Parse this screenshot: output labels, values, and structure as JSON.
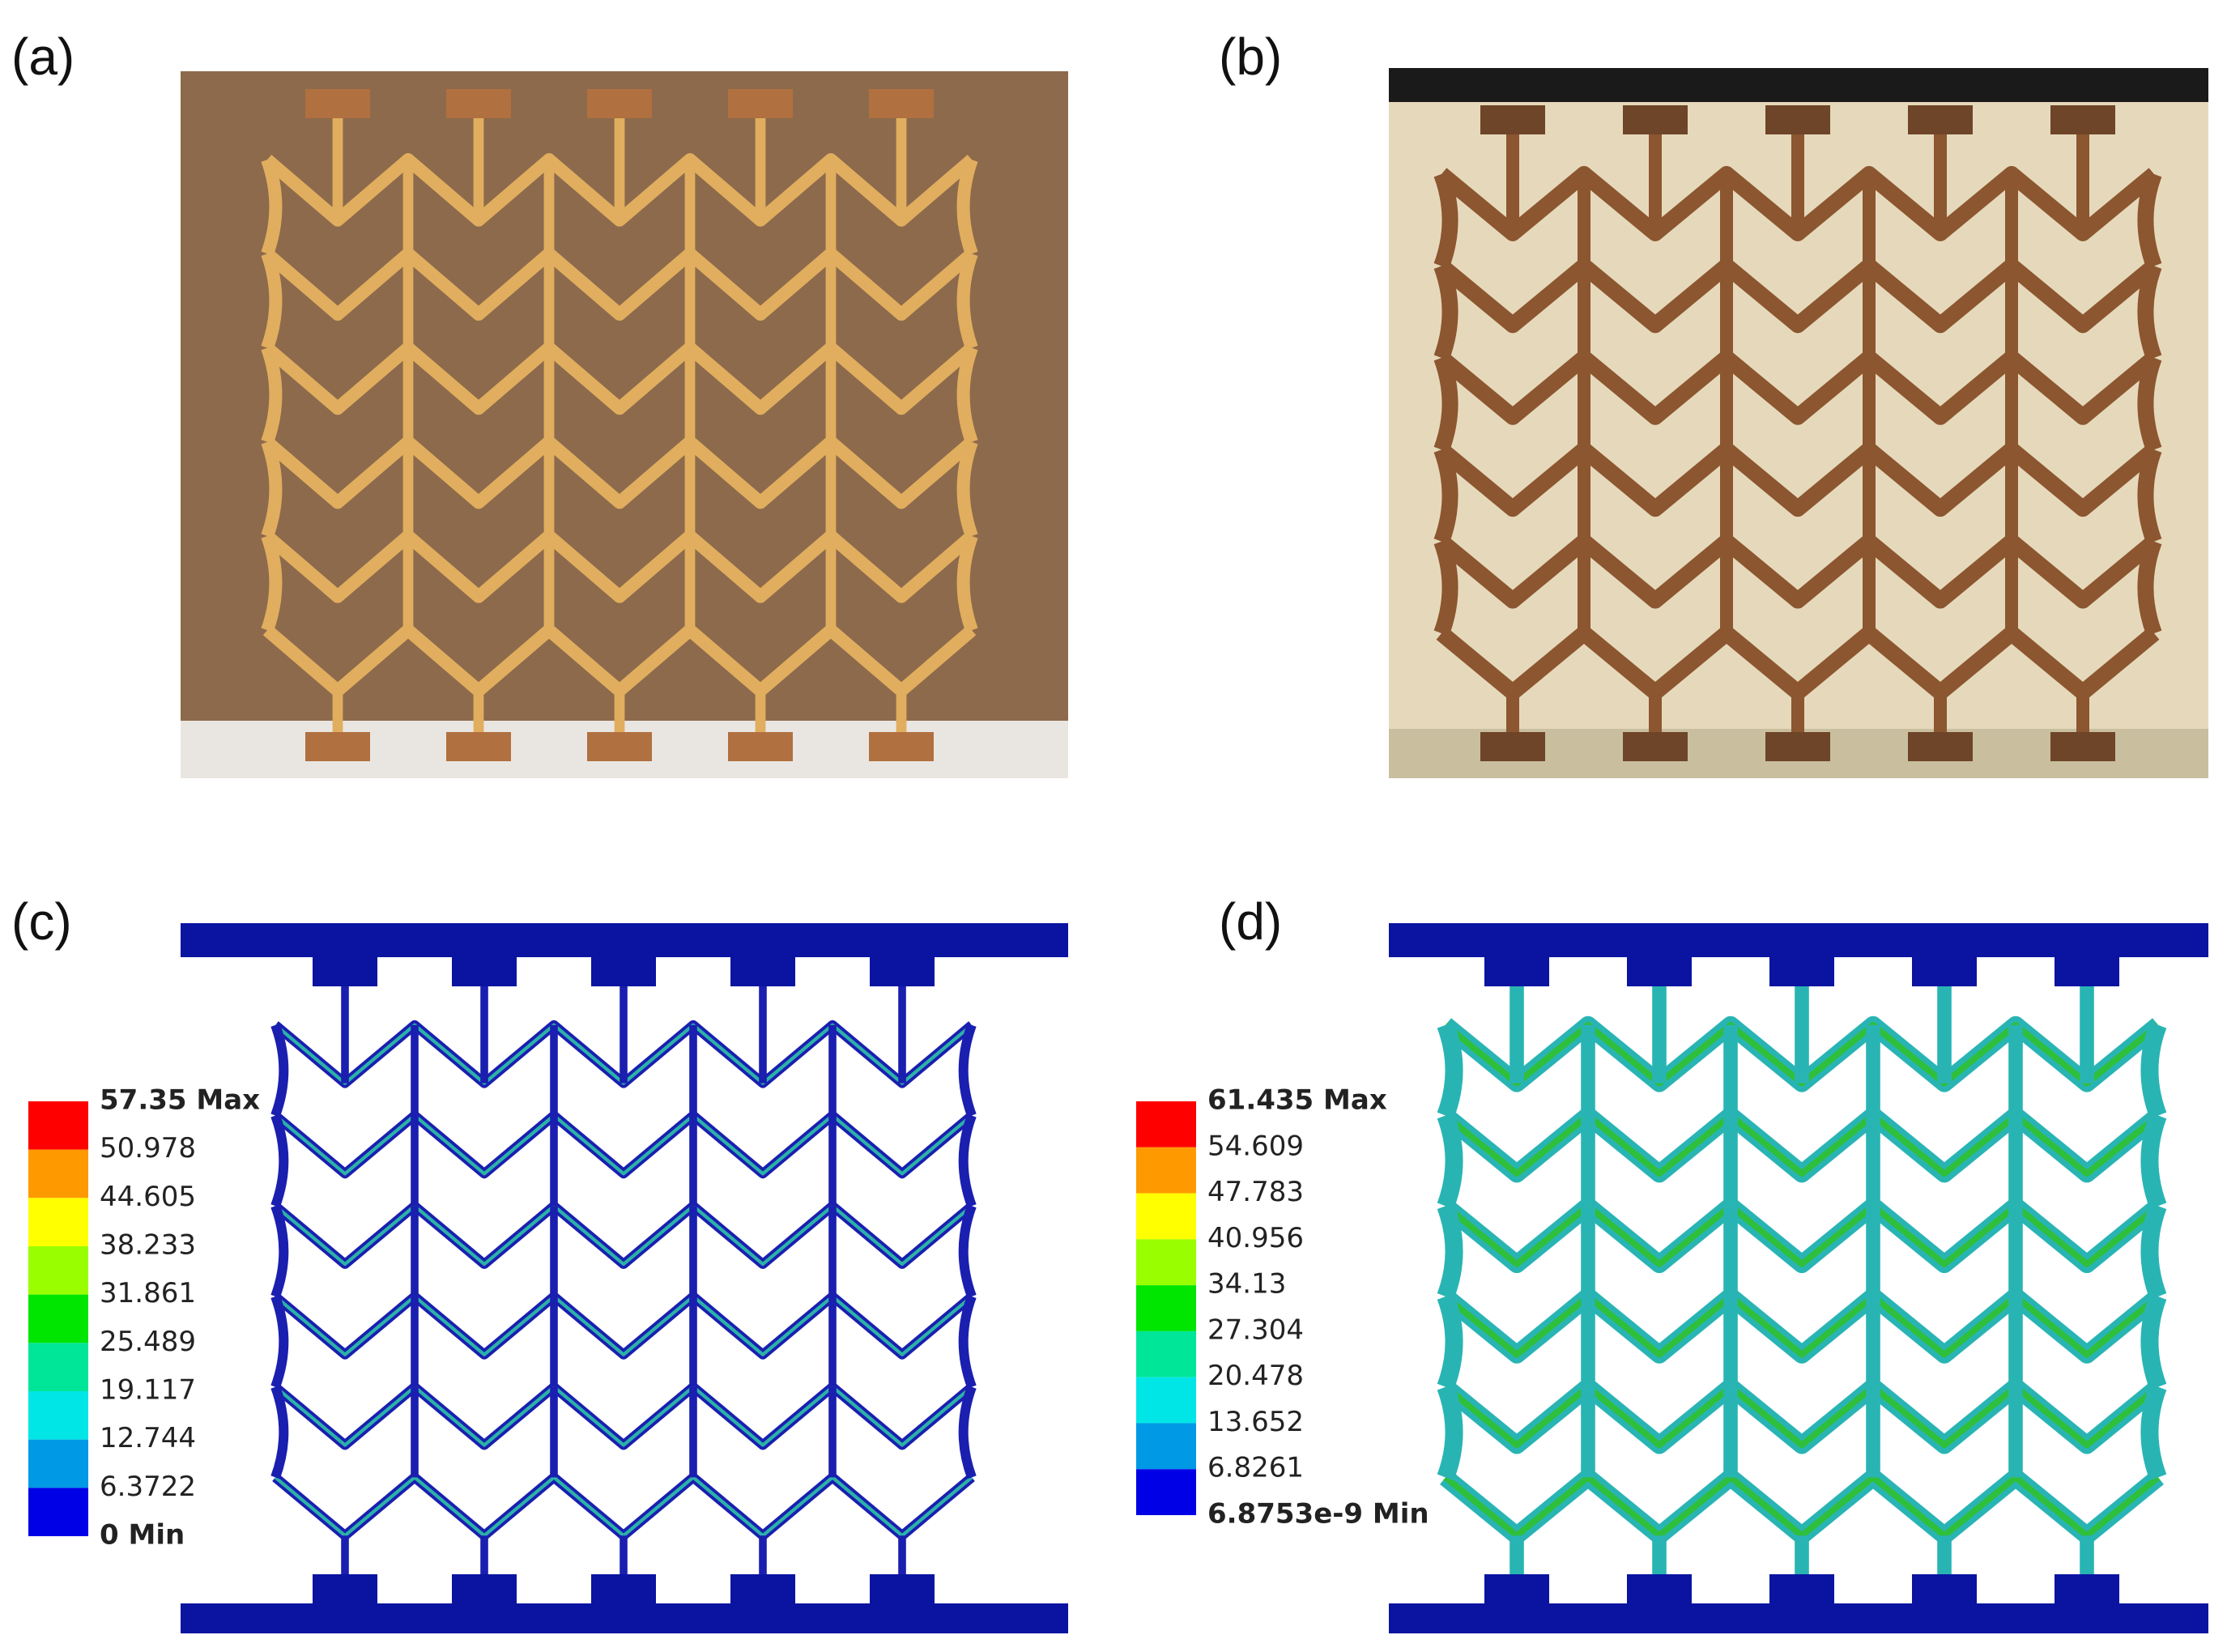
{
  "panels": [
    {
      "label": "(a)"
    },
    {
      "label": "(b)"
    },
    {
      "label": "(c)",
      "legend": [
        "57.35 Max",
        "50.978",
        "44.605",
        "38.233",
        "31.861",
        "25.489",
        "19.117",
        "12.744",
        "6.3722",
        "0 Min"
      ]
    },
    {
      "label": "(d)",
      "legend": [
        "61.435 Max",
        "54.609",
        "47.783",
        "40.956",
        "34.13",
        "27.304",
        "20.478",
        "13.652",
        "6.8261",
        "6.8753e-9 Min"
      ]
    }
  ]
}
